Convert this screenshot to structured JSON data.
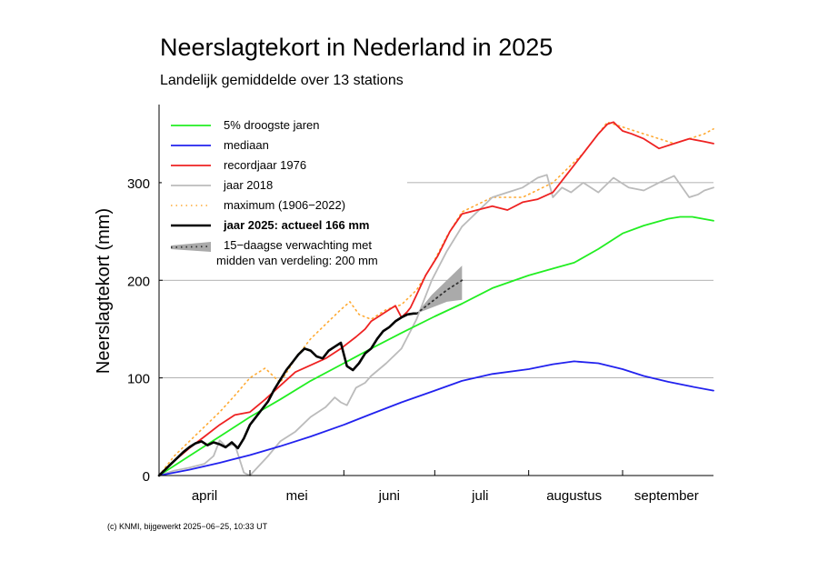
{
  "chart_data": {
    "type": "line",
    "title": "Neerslagtekort in Nederland in 2025",
    "subtitle": "Landelijk gemiddelde over 13 stations",
    "ylabel": "Neerslagtekort (mm)",
    "xlabel": "",
    "x_unit": "day of season (1 april = 0)",
    "xlim": [
      0,
      183
    ],
    "ylim": [
      0,
      380
    ],
    "yticks": [
      0,
      100,
      200,
      300
    ],
    "month_labels": [
      {
        "label": "april",
        "x": 15
      },
      {
        "label": "mei",
        "x": 45.5
      },
      {
        "label": "juni",
        "x": 76
      },
      {
        "label": "juli",
        "x": 106
      },
      {
        "label": "augustus",
        "x": 137
      },
      {
        "label": "september",
        "x": 167.5
      }
    ],
    "month_boundaries": [
      30,
      61,
      91,
      122,
      153
    ],
    "grid": "horizontal",
    "legend_position": "top-left",
    "footer": "(c) KNMI, bijgewerkt 2025−06−25, 10:33 UT",
    "colors": {
      "droogste": "#22ee22",
      "mediaan": "#2222ee",
      "record": "#ee2222",
      "jaar2018": "#bbbbbb",
      "maximum": "#ffaa33",
      "actueel": "#000000",
      "verwachting": "#aaaaaa"
    },
    "series": [
      {
        "key": "droogste",
        "name": "5% droogste jaren",
        "style": "solid",
        "x": [
          0,
          10,
          20,
          30,
          40,
          50,
          61,
          70,
          80,
          91,
          100,
          110,
          122,
          130,
          137,
          145,
          153,
          160,
          168,
          172,
          176,
          183
        ],
        "y": [
          0,
          20,
          40,
          60,
          78,
          97,
          115,
          130,
          146,
          163,
          176,
          192,
          205,
          212,
          218,
          232,
          248,
          256,
          263,
          265,
          265,
          261
        ]
      },
      {
        "key": "mediaan",
        "name": "mediaan",
        "style": "solid",
        "x": [
          0,
          10,
          20,
          30,
          40,
          50,
          61,
          70,
          80,
          91,
          100,
          110,
          122,
          130,
          137,
          145,
          153,
          160,
          168,
          176,
          183
        ],
        "y": [
          0,
          6,
          13,
          21,
          30,
          40,
          52,
          63,
          75,
          87,
          97,
          104,
          109,
          114,
          117,
          115,
          109,
          102,
          96,
          91,
          87
        ]
      },
      {
        "key": "record",
        "name": "recordjaar 1976",
        "style": "solid",
        "x": [
          0,
          5,
          10,
          15,
          20,
          25,
          30,
          35,
          40,
          45,
          50,
          55,
          60,
          65,
          68,
          70,
          72,
          75,
          78,
          80,
          82,
          83,
          85,
          88,
          92,
          96,
          100,
          105,
          110,
          115,
          120,
          125,
          130,
          135,
          140,
          145,
          148,
          150,
          153,
          156,
          160,
          165,
          170,
          175,
          180,
          183
        ],
        "y": [
          0,
          15,
          28,
          40,
          52,
          62,
          65,
          78,
          92,
          106,
          113,
          120,
          130,
          142,
          150,
          158,
          162,
          168,
          174,
          162,
          168,
          172,
          185,
          205,
          225,
          250,
          268,
          272,
          276,
          272,
          280,
          283,
          290,
          310,
          330,
          350,
          360,
          362,
          353,
          350,
          345,
          335,
          340,
          345,
          342,
          340
        ]
      },
      {
        "key": "jaar2018",
        "name": "jaar 2018",
        "style": "solid",
        "x": [
          0,
          5,
          10,
          15,
          18,
          20,
          22,
          25,
          28,
          30,
          33,
          36,
          40,
          45,
          50,
          55,
          58,
          60,
          62,
          65,
          68,
          70,
          75,
          80,
          85,
          90,
          95,
          100,
          105,
          110,
          115,
          120,
          125,
          128,
          130,
          133,
          136,
          140,
          145,
          150,
          155,
          160,
          165,
          170,
          175,
          178,
          180,
          183
        ],
        "y": [
          0,
          5,
          8,
          12,
          20,
          36,
          30,
          32,
          3,
          0,
          10,
          20,
          35,
          45,
          60,
          70,
          80,
          75,
          72,
          90,
          95,
          102,
          115,
          130,
          160,
          200,
          230,
          255,
          270,
          285,
          290,
          295,
          305,
          308,
          285,
          295,
          290,
          300,
          290,
          305,
          295,
          292,
          300,
          307,
          285,
          288,
          292,
          295
        ]
      },
      {
        "key": "maximum",
        "name": "maximum (1906−2022)",
        "style": "dotted",
        "x": [
          0,
          5,
          10,
          15,
          20,
          25,
          30,
          35,
          40,
          45,
          50,
          55,
          60,
          63,
          66,
          70,
          75,
          80,
          85,
          90,
          95,
          100,
          110,
          120,
          130,
          140,
          148,
          160,
          170,
          175,
          180,
          183
        ],
        "y": [
          0,
          20,
          35,
          50,
          65,
          82,
          100,
          110,
          95,
          120,
          140,
          155,
          170,
          178,
          165,
          160,
          170,
          175,
          190,
          215,
          245,
          270,
          285,
          285,
          300,
          330,
          362,
          350,
          340,
          345,
          350,
          355
        ]
      },
      {
        "key": "actueel",
        "name": "jaar 2025: actueel 166 mm",
        "style": "solid",
        "bold": true,
        "x": [
          0,
          2,
          4,
          6,
          8,
          10,
          12,
          14,
          16,
          18,
          20,
          22,
          24,
          26,
          28,
          30,
          32,
          34,
          36,
          38,
          40,
          42,
          44,
          46,
          48,
          50,
          52,
          54,
          56,
          58,
          60,
          62,
          64,
          66,
          68,
          70,
          72,
          74,
          76,
          78,
          80,
          82,
          84,
          85
        ],
        "y": [
          0,
          6,
          12,
          18,
          24,
          29,
          33,
          35,
          31,
          34,
          32,
          29,
          34,
          28,
          38,
          52,
          60,
          68,
          76,
          88,
          98,
          108,
          116,
          124,
          130,
          128,
          122,
          120,
          128,
          132,
          136,
          112,
          108,
          115,
          125,
          130,
          140,
          148,
          152,
          158,
          162,
          165,
          166,
          166
        ]
      }
    ],
    "forecast": {
      "name_line1": "15−daagse verwachting met",
      "name_line2": "midden van verdeling: 200 mm",
      "x": [
        85,
        90,
        95,
        100
      ],
      "mid": [
        166,
        178,
        190,
        200
      ],
      "low": [
        166,
        172,
        178,
        180
      ],
      "high": [
        166,
        185,
        200,
        215
      ]
    }
  }
}
